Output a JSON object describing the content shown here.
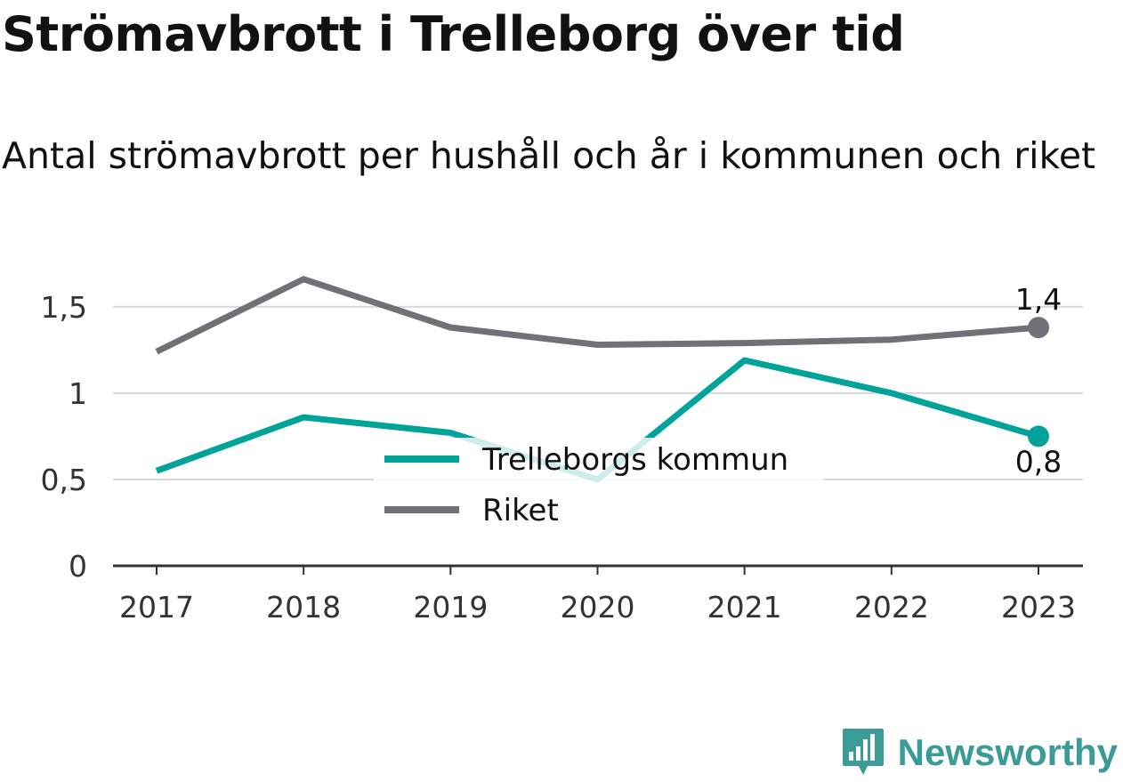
{
  "header": {
    "title": "Strömavbrott i Trelleborg över tid",
    "subtitle": "Antal strömavbrott per hushåll och år i kommunen och riket"
  },
  "brand": {
    "name": "Newsworthy",
    "icon": "newsworthy-logo-icon"
  },
  "colors": {
    "kommun": "#00a39a",
    "riket": "#717077",
    "grid": "#d9d9d9",
    "axis": "#333333"
  },
  "chart_data": {
    "type": "line",
    "x": [
      "2017",
      "2018",
      "2019",
      "2020",
      "2021",
      "2022",
      "2023"
    ],
    "ylim": [
      0,
      1.7
    ],
    "yticks": [
      0,
      0.5,
      1,
      1.5
    ],
    "ytick_labels": [
      "0",
      "0,5",
      "1",
      "1,5"
    ],
    "grid": true,
    "legend_position": "center",
    "series": [
      {
        "name": "Trelleborgs kommun",
        "color": "#00a39a",
        "values": [
          0.55,
          0.86,
          0.77,
          0.5,
          1.19,
          1.0,
          0.75
        ],
        "end_label": "0,8"
      },
      {
        "name": "Riket",
        "color": "#717077",
        "values": [
          1.24,
          1.66,
          1.38,
          1.28,
          1.29,
          1.31,
          1.38
        ],
        "end_label": "1,4"
      }
    ]
  }
}
